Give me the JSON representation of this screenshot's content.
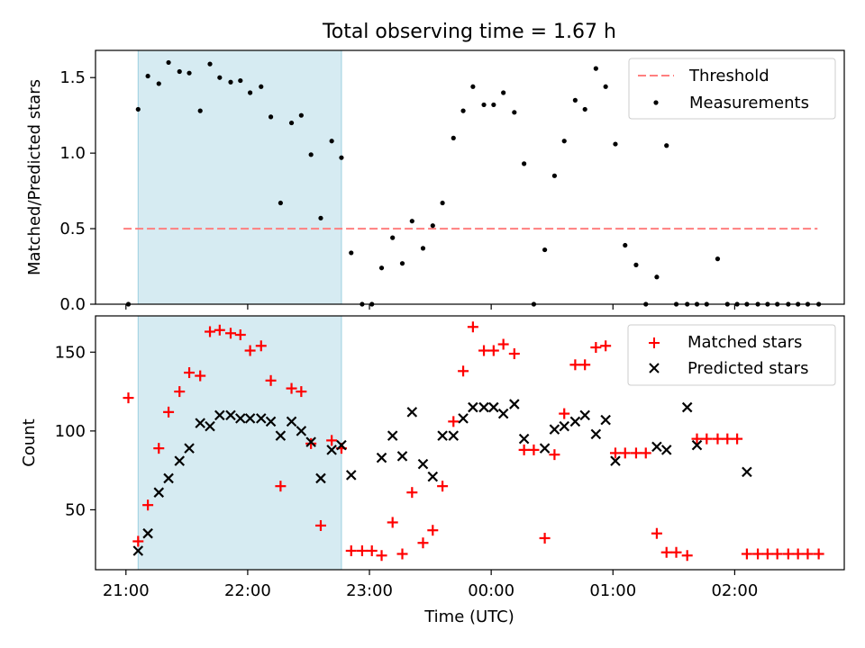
{
  "chart_data": [
    {
      "type": "scatter",
      "title": "Total observing time = 1.67 h",
      "xlabel": "",
      "ylabel": "Matched/Predicted stars",
      "ylim": [
        0,
        1.68
      ],
      "yticks": [
        0.0,
        0.5,
        1.0,
        1.5
      ],
      "ytick_labels": [
        "0.0",
        "0.5",
        "1.0",
        "1.5"
      ],
      "legend_position": "top-right",
      "threshold": {
        "name": "Threshold",
        "value": 0.5,
        "x_range": [
          -0.02,
          5.68
        ],
        "color": "#ff7f7f",
        "style": "dashed"
      },
      "highlight": {
        "x_range": [
          0.1,
          1.77
        ],
        "color": "#add8e6"
      },
      "series": [
        {
          "name": "Measurements",
          "color": "#000000",
          "marker": "dot",
          "x": [
            0.02,
            0.1,
            0.18,
            0.27,
            0.35,
            0.44,
            0.52,
            0.61,
            0.69,
            0.77,
            0.86,
            0.94,
            1.02,
            1.11,
            1.19,
            1.27,
            1.36,
            1.44,
            1.52,
            1.6,
            1.69,
            1.77,
            1.85,
            1.94,
            2.02,
            2.1,
            2.19,
            2.27,
            2.35,
            2.44,
            2.52,
            2.6,
            2.69,
            2.77,
            2.85,
            2.94,
            3.02,
            3.1,
            3.19,
            3.27,
            3.35,
            3.44,
            3.52,
            3.6,
            3.69,
            3.77,
            3.86,
            3.94,
            4.02,
            4.1,
            4.19,
            4.27,
            4.36,
            4.44,
            4.52,
            4.61,
            4.69,
            4.77,
            4.86,
            4.94,
            5.02,
            5.1,
            5.19,
            5.27,
            5.35,
            5.44,
            5.52,
            5.6,
            5.69
          ],
          "y": [
            0.0,
            1.29,
            1.51,
            1.46,
            1.6,
            1.54,
            1.53,
            1.28,
            1.59,
            1.5,
            1.47,
            1.48,
            1.4,
            1.44,
            1.24,
            0.67,
            1.2,
            1.25,
            0.99,
            0.57,
            1.08,
            0.97,
            0.34,
            0.0,
            0.0,
            0.24,
            0.44,
            0.27,
            0.55,
            0.37,
            0.52,
            0.67,
            1.1,
            1.28,
            1.44,
            1.32,
            1.32,
            1.4,
            1.27,
            0.93,
            0.0,
            0.36,
            0.85,
            1.08,
            1.35,
            1.29,
            1.56,
            1.44,
            1.06,
            0.39,
            0.26,
            0.0,
            0.18,
            1.05,
            0.0,
            0.0,
            0.0,
            0.0,
            0.3,
            0.0,
            0.0,
            0.0,
            0.0,
            0.0,
            0.0,
            0.0,
            0.0,
            0.0,
            0.0
          ]
        }
      ]
    },
    {
      "type": "scatter",
      "title": "",
      "xlabel": "Time (UTC)",
      "ylabel": "Count",
      "ylim": [
        12,
        173
      ],
      "yticks": [
        50,
        100,
        150
      ],
      "ytick_labels": [
        "50",
        "100",
        "150"
      ],
      "xticks": [
        0,
        1,
        2,
        3,
        4,
        5
      ],
      "xtick_labels": [
        "21:00",
        "22:00",
        "23:00",
        "00:00",
        "01:00",
        "02:00"
      ],
      "xlim": [
        -0.25,
        5.9
      ],
      "legend_position": "top-right",
      "highlight": {
        "x_range": [
          0.1,
          1.77
        ],
        "color": "#add8e6"
      },
      "series": [
        {
          "name": "Matched stars",
          "color": "#ff0000",
          "marker": "plus",
          "x": [
            0.02,
            0.1,
            0.18,
            0.27,
            0.35,
            0.44,
            0.52,
            0.61,
            0.69,
            0.77,
            0.86,
            0.94,
            1.02,
            1.11,
            1.19,
            1.27,
            1.36,
            1.44,
            1.52,
            1.6,
            1.69,
            1.77,
            1.85,
            1.94,
            2.02,
            2.1,
            2.19,
            2.27,
            2.35,
            2.44,
            2.52,
            2.6,
            2.69,
            2.77,
            2.85,
            2.94,
            3.02,
            3.1,
            3.19,
            3.27,
            3.35,
            3.44,
            3.52,
            3.6,
            3.69,
            3.77,
            3.86,
            3.94,
            4.02,
            4.1,
            4.19,
            4.27,
            4.36,
            4.44,
            4.52,
            4.61,
            4.69,
            4.77,
            4.86,
            4.94,
            5.02,
            5.1,
            5.19,
            5.27,
            5.35,
            5.44,
            5.52,
            5.6,
            5.69
          ],
          "y": [
            121,
            30,
            53,
            89,
            112,
            125,
            137,
            135,
            163,
            164,
            162,
            161,
            151,
            154,
            132,
            65,
            127,
            125,
            92,
            40,
            94,
            89,
            24,
            24,
            24,
            21,
            42,
            22,
            61,
            29,
            37,
            65,
            106,
            138,
            166,
            151,
            151,
            155,
            149,
            88,
            88,
            32,
            85,
            111,
            142,
            142,
            153,
            154,
            86,
            86,
            86,
            86,
            35,
            23,
            23,
            21,
            95,
            95,
            95,
            95,
            95,
            22,
            22,
            22,
            22,
            22,
            22,
            22,
            22
          ]
        },
        {
          "name": "Predicted stars",
          "color": "#000000",
          "marker": "x",
          "x": [
            0.1,
            0.18,
            0.27,
            0.35,
            0.44,
            0.52,
            0.61,
            0.69,
            0.77,
            0.86,
            0.94,
            1.02,
            1.11,
            1.19,
            1.27,
            1.36,
            1.44,
            1.52,
            1.6,
            1.69,
            1.77,
            1.85,
            2.1,
            2.19,
            2.27,
            2.35,
            2.44,
            2.52,
            2.6,
            2.69,
            2.77,
            2.85,
            2.94,
            3.02,
            3.1,
            3.19,
            3.27,
            3.44,
            3.52,
            3.6,
            3.69,
            3.77,
            3.86,
            3.94,
            4.02,
            4.36,
            4.44,
            4.61,
            4.69,
            5.1
          ],
          "y": [
            24,
            35,
            61,
            70,
            81,
            89,
            105,
            103,
            110,
            110,
            108,
            108,
            108,
            106,
            97,
            106,
            100,
            93,
            70,
            88,
            91,
            72,
            83,
            97,
            84,
            112,
            79,
            71,
            97,
            97,
            108,
            115,
            115,
            115,
            111,
            117,
            95,
            89,
            101,
            103,
            106,
            110,
            98,
            107,
            81,
            90,
            88,
            115,
            91,
            74
          ]
        }
      ]
    }
  ]
}
